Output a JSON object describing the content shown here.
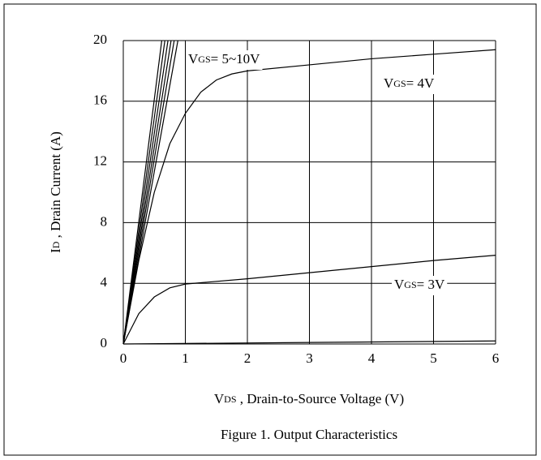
{
  "chart_data": {
    "type": "line",
    "caption": "Figure 1. Output Characteristics",
    "x_label": {
      "main": "V",
      "sub": "DS",
      "rest": " , Drain-to-Source Voltage (V)"
    },
    "y_label": {
      "main": "I",
      "sub": "D",
      "rest": " , Drain Current (A)"
    },
    "annotations": [
      {
        "main": "V",
        "sub": "GS",
        "rest": "= 5~10V"
      },
      {
        "main": "V",
        "sub": "GS",
        "rest": "= 4V"
      },
      {
        "main": "V",
        "sub": "GS",
        "rest": "= 3V"
      }
    ],
    "xlim": [
      0,
      6
    ],
    "xticks": [
      0,
      1,
      2,
      3,
      4,
      5,
      6
    ],
    "ylim": [
      0,
      20
    ],
    "yticks": [
      0,
      4,
      8,
      12,
      16,
      20
    ],
    "grid": true,
    "color": "#000000",
    "series": [
      {
        "x": [
          0,
          0.62
        ],
        "values": [
          0,
          20
        ]
      },
      {
        "x": [
          0,
          0.67
        ],
        "values": [
          0,
          20
        ]
      },
      {
        "x": [
          0,
          0.72
        ],
        "values": [
          0,
          20
        ]
      },
      {
        "x": [
          0,
          0.77
        ],
        "values": [
          0,
          20
        ]
      },
      {
        "x": [
          0,
          0.82
        ],
        "values": [
          0,
          20
        ]
      },
      {
        "x": [
          0,
          0.88
        ],
        "values": [
          0,
          20
        ]
      },
      {
        "x": [
          0,
          0.25,
          0.5,
          0.75,
          1,
          1.25,
          1.5,
          1.75,
          2,
          3,
          4,
          5,
          6
        ],
        "values": [
          0,
          5.5,
          10,
          13.2,
          15.2,
          16.6,
          17.4,
          17.8,
          18,
          18.4,
          18.8,
          19.1,
          19.4
        ]
      },
      {
        "x": [
          0,
          0.25,
          0.5,
          0.75,
          1,
          2,
          3,
          4,
          5,
          6
        ],
        "values": [
          0,
          2,
          3.1,
          3.7,
          3.95,
          4.3,
          4.7,
          5.1,
          5.5,
          5.85
        ]
      },
      {
        "x": [
          0,
          6
        ],
        "values": [
          0,
          0.2
        ]
      }
    ]
  }
}
